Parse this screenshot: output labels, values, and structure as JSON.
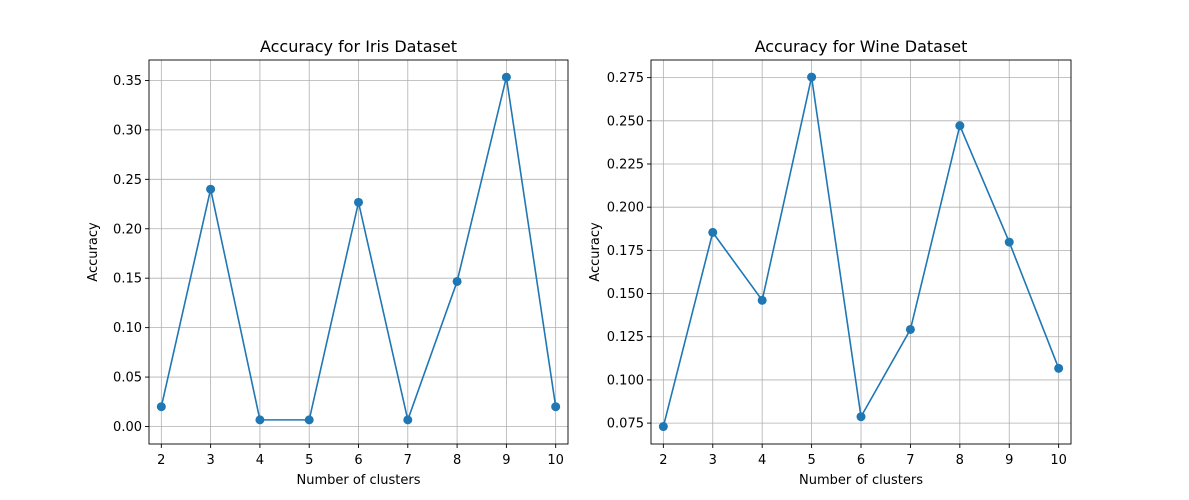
{
  "chart_data": [
    {
      "type": "line",
      "title": "Accuracy for Iris Dataset",
      "xlabel": "Number of clusters",
      "ylabel": "Accuracy",
      "x": [
        2,
        3,
        4,
        5,
        6,
        7,
        8,
        9,
        10
      ],
      "series": [
        {
          "values": [
            0.02,
            0.24,
            0.0067,
            0.0067,
            0.2267,
            0.0067,
            0.1467,
            0.3533,
            0.02
          ]
        }
      ],
      "xlim": [
        1.75,
        10.25
      ],
      "ylim": [
        -0.0177,
        0.3707
      ],
      "xticks": [
        2,
        3,
        4,
        5,
        6,
        7,
        8,
        9,
        10
      ],
      "yticks": [
        0.0,
        0.05,
        0.1,
        0.15,
        0.2,
        0.25,
        0.3,
        0.35
      ],
      "ytick_labels": [
        "0.00",
        "0.05",
        "0.10",
        "0.15",
        "0.20",
        "0.25",
        "0.30",
        "0.35"
      ],
      "grid": true,
      "marker": "circle",
      "color": "#1f77b4"
    },
    {
      "type": "line",
      "title": "Accuracy for Wine Dataset",
      "xlabel": "Number of clusters",
      "ylabel": "Accuracy",
      "x": [
        2,
        3,
        4,
        5,
        6,
        7,
        8,
        9,
        10
      ],
      "series": [
        {
          "values": [
            0.073,
            0.1854,
            0.1461,
            0.2753,
            0.0787,
            0.1292,
            0.2472,
            0.1798,
            0.1067
          ]
        }
      ],
      "xlim": [
        1.75,
        10.25
      ],
      "ylim": [
        0.0629,
        0.2852
      ],
      "xticks": [
        2,
        3,
        4,
        5,
        6,
        7,
        8,
        9,
        10
      ],
      "yticks": [
        0.075,
        0.1,
        0.125,
        0.15,
        0.175,
        0.2,
        0.225,
        0.25,
        0.275
      ],
      "ytick_labels": [
        "0.075",
        "0.100",
        "0.125",
        "0.150",
        "0.175",
        "0.200",
        "0.225",
        "0.250",
        "0.275"
      ],
      "grid": true,
      "marker": "circle",
      "color": "#1f77b4"
    }
  ]
}
